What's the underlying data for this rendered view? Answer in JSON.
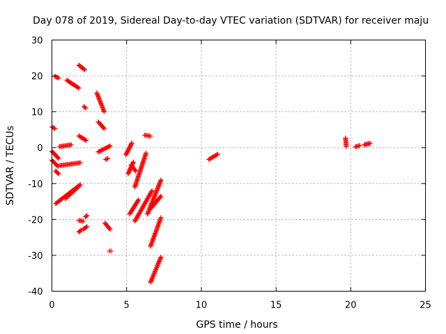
{
  "chart_data": {
    "type": "scatter",
    "title": "Day 078 of 2019, Sidereal Day-to-day VTEC variation (SDTVAR) for receiver maju",
    "xlabel": "GPS time / hours",
    "ylabel": "SDTVAR / TECUs",
    "xlim": [
      0,
      25
    ],
    "ylim": [
      -40,
      30
    ],
    "xticks": [
      0,
      5,
      10,
      15,
      20,
      25
    ],
    "yticks": [
      -40,
      -30,
      -20,
      -10,
      0,
      10,
      20,
      30
    ],
    "grid": true,
    "marker": "+",
    "marker_color": "#ff0000",
    "series": [
      {
        "name": "SDTVAR",
        "segments": [
          {
            "x": [
              0.0,
              0.2
            ],
            "y": [
              5.8,
              5.3
            ]
          },
          {
            "x": [
              0.2,
              0.45
            ],
            "y": [
              19.9,
              19.4
            ]
          },
          {
            "x": [
              0.0,
              0.45
            ],
            "y": [
              -1.0,
              -3.0
            ]
          },
          {
            "x": [
              0.0,
              0.4
            ],
            "y": [
              -3.5,
              -5.2
            ]
          },
          {
            "x": [
              0.25,
              0.45
            ],
            "y": [
              -6.5,
              -7.3
            ]
          },
          {
            "x": [
              0.5,
              1.3
            ],
            "y": [
              0.3,
              0.8
            ]
          },
          {
            "x": [
              0.5,
              1.9
            ],
            "y": [
              -5.0,
              -4.2
            ]
          },
          {
            "x": [
              0.25,
              1.9
            ],
            "y": [
              -15.6,
              -10.3
            ]
          },
          {
            "x": [
              0.9,
              1.8
            ],
            "y": [
              -14.2,
              -10.8
            ]
          },
          {
            "x": [
              1.0,
              1.8
            ],
            "y": [
              18.8,
              16.6
            ]
          },
          {
            "x": [
              1.8,
              2.2
            ],
            "y": [
              23.0,
              21.7
            ]
          },
          {
            "x": [
              1.8,
              2.3
            ],
            "y": [
              3.3,
              2.0
            ]
          },
          {
            "x": [
              2.15,
              2.25
            ],
            "y": [
              11.5,
              11.0
            ]
          },
          {
            "x": [
              1.8,
              2.1
            ],
            "y": [
              -20.3,
              -20.5
            ]
          },
          {
            "x": [
              1.8,
              1.95
            ],
            "y": [
              -23.5,
              -23.0
            ]
          },
          {
            "x": [
              2.1,
              2.35
            ],
            "y": [
              -22.7,
              -22.0
            ]
          },
          {
            "x": [
              2.25,
              2.35
            ],
            "y": [
              -19.3,
              -18.9
            ]
          },
          {
            "x": [
              3.0,
              3.5
            ],
            "y": [
              15.3,
              10.0
            ]
          },
          {
            "x": [
              3.1,
              3.5
            ],
            "y": [
              7.2,
              5.3
            ]
          },
          {
            "x": [
              3.1,
              3.9
            ],
            "y": [
              -1.2,
              0.5
            ]
          },
          {
            "x": [
              3.6,
              3.75
            ],
            "y": [
              -3.3,
              -3.0
            ]
          },
          {
            "x": [
              3.55,
              3.9
            ],
            "y": [
              -21.0,
              -22.8
            ]
          },
          {
            "x": [
              3.85,
              3.95
            ],
            "y": [
              -28.8,
              -28.8
            ]
          },
          {
            "x": [
              4.95,
              5.35
            ],
            "y": [
              -2.0,
              1.3
            ]
          },
          {
            "x": [
              5.1,
              5.45
            ],
            "y": [
              -7.3,
              -4.0
            ]
          },
          {
            "x": [
              5.3,
              5.6
            ],
            "y": [
              -4.8,
              -6.5
            ]
          },
          {
            "x": [
              5.55,
              6.3
            ],
            "y": [
              -11.0,
              -1.5
            ]
          },
          {
            "x": [
              5.2,
              5.8
            ],
            "y": [
              -18.5,
              -14.5
            ]
          },
          {
            "x": [
              5.55,
              6.7
            ],
            "y": [
              -20.5,
              -12.0
            ]
          },
          {
            "x": [
              6.2,
              6.6
            ],
            "y": [
              3.5,
              3.2
            ]
          },
          {
            "x": [
              6.4,
              7.3
            ],
            "y": [
              -18.5,
              -9.0
            ]
          },
          {
            "x": [
              6.6,
              7.3
            ],
            "y": [
              -17.0,
              -13.5
            ]
          },
          {
            "x": [
              6.6,
              7.3
            ],
            "y": [
              -27.5,
              -19.5
            ]
          },
          {
            "x": [
              6.6,
              7.3
            ],
            "y": [
              -37.5,
              -30.5
            ]
          },
          {
            "x": [
              10.5,
              11.1
            ],
            "y": [
              -3.3,
              -1.8
            ]
          },
          {
            "x": [
              19.65,
              19.7
            ],
            "y": [
              2.7,
              0.3
            ]
          },
          {
            "x": [
              20.3,
              20.6
            ],
            "y": [
              0.2,
              0.6
            ]
          },
          {
            "x": [
              20.9,
              21.3
            ],
            "y": [
              0.8,
              1.2
            ]
          }
        ]
      }
    ]
  }
}
